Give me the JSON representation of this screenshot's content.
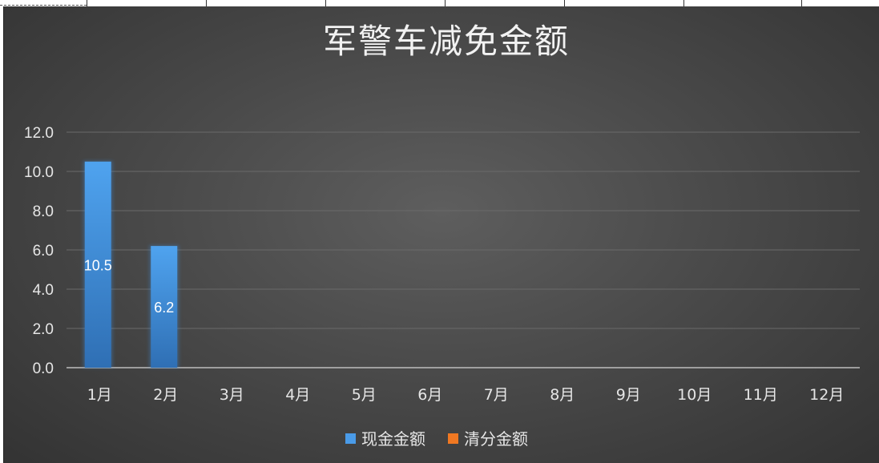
{
  "chart_data": {
    "type": "bar",
    "title": "军警车减免金额",
    "categories": [
      "1月",
      "2月",
      "3月",
      "4月",
      "5月",
      "6月",
      "7月",
      "8月",
      "9月",
      "10月",
      "11月",
      "12月"
    ],
    "series": [
      {
        "name": "现金金额",
        "color": "#4a9be8",
        "values": [
          10.5,
          6.2,
          0,
          0,
          0,
          0,
          0,
          0,
          0,
          0,
          0,
          0
        ]
      },
      {
        "name": "清分金额",
        "color": "#f07822",
        "values": [
          0,
          0,
          0,
          0,
          0,
          0,
          0,
          0,
          0,
          0,
          0,
          0
        ]
      }
    ],
    "data_labels": [
      "10.5",
      "6.2"
    ],
    "yticks": [
      "0.0",
      "2.0",
      "4.0",
      "6.0",
      "8.0",
      "10.0",
      "12.0"
    ],
    "ylim": [
      0,
      12
    ],
    "grid": true,
    "legend_position": "bottom",
    "background": "#484848"
  }
}
